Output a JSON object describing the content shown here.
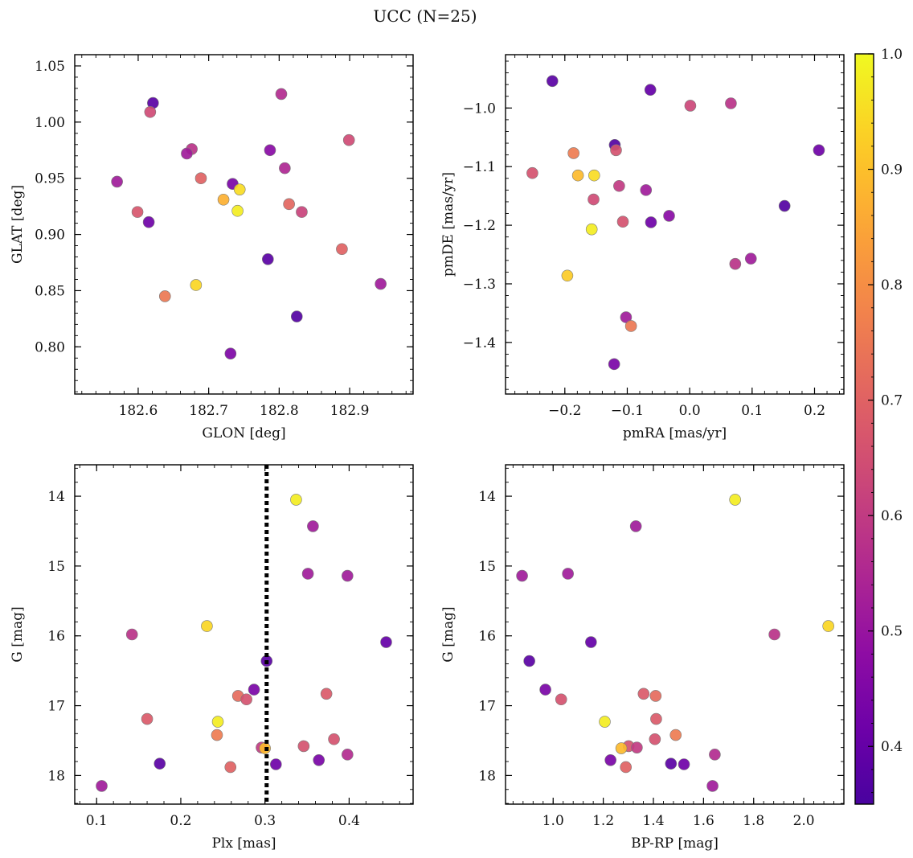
{
  "figure": {
    "title": "UCC (N=25)"
  },
  "colorbar": {
    "colormap": "plasma",
    "vmin": 0.35,
    "vmax": 1.0,
    "ticks": [
      0.4,
      0.5,
      0.6,
      0.7,
      0.8,
      0.9,
      1.0
    ],
    "tick_labels": [
      "0.4",
      "0.5",
      "0.6",
      "0.7",
      "0.8",
      "0.9",
      "1.0"
    ]
  },
  "chart_data": [
    {
      "type": "scatter",
      "id": "glon_glat",
      "xlabel": "GLON [deg]",
      "ylabel": "GLAT [deg]",
      "xlim": [
        182.51,
        182.99
      ],
      "ylim": [
        0.758,
        1.06
      ],
      "xticks": [
        182.6,
        182.7,
        182.8,
        182.9
      ],
      "xtick_labels": [
        "182.6",
        "182.7",
        "182.8",
        "182.9"
      ],
      "yticks": [
        0.8,
        0.85,
        0.9,
        0.95,
        1.0,
        1.05
      ],
      "ytick_labels": [
        "0.80",
        "0.85",
        "0.90",
        "0.95",
        "1.00",
        "1.05"
      ],
      "y_inverted": false,
      "points": [
        {
          "x": 182.621,
          "y": 1.017,
          "c": 0.38
        },
        {
          "x": 182.617,
          "y": 1.009,
          "c": 0.64
        },
        {
          "x": 182.803,
          "y": 1.025,
          "c": 0.56
        },
        {
          "x": 182.899,
          "y": 0.984,
          "c": 0.64
        },
        {
          "x": 182.676,
          "y": 0.976,
          "c": 0.58
        },
        {
          "x": 182.669,
          "y": 0.972,
          "c": 0.52
        },
        {
          "x": 182.787,
          "y": 0.975,
          "c": 0.47
        },
        {
          "x": 182.808,
          "y": 0.959,
          "c": 0.55
        },
        {
          "x": 182.57,
          "y": 0.947,
          "c": 0.52
        },
        {
          "x": 182.689,
          "y": 0.95,
          "c": 0.7
        },
        {
          "x": 182.734,
          "y": 0.945,
          "c": 0.44
        },
        {
          "x": 182.744,
          "y": 0.94,
          "c": 0.95
        },
        {
          "x": 182.721,
          "y": 0.931,
          "c": 0.87
        },
        {
          "x": 182.814,
          "y": 0.927,
          "c": 0.71
        },
        {
          "x": 182.832,
          "y": 0.92,
          "c": 0.62
        },
        {
          "x": 182.599,
          "y": 0.92,
          "c": 0.67
        },
        {
          "x": 182.741,
          "y": 0.921,
          "c": 0.98
        },
        {
          "x": 182.615,
          "y": 0.911,
          "c": 0.42
        },
        {
          "x": 182.889,
          "y": 0.887,
          "c": 0.7
        },
        {
          "x": 182.784,
          "y": 0.878,
          "c": 0.38
        },
        {
          "x": 182.682,
          "y": 0.855,
          "c": 0.94
        },
        {
          "x": 182.638,
          "y": 0.845,
          "c": 0.75
        },
        {
          "x": 182.944,
          "y": 0.856,
          "c": 0.52
        },
        {
          "x": 182.825,
          "y": 0.827,
          "c": 0.37
        },
        {
          "x": 182.731,
          "y": 0.794,
          "c": 0.45
        }
      ]
    },
    {
      "type": "scatter",
      "id": "pmra_pmde",
      "xlabel": "pmRA [mas/yr]",
      "ylabel": "pmDE [mas/yr]",
      "xlim": [
        -0.295,
        0.247
      ],
      "ylim": [
        -1.488,
        -0.909
      ],
      "xticks": [
        -0.2,
        -0.1,
        0.0,
        0.1,
        0.2
      ],
      "xtick_labels": [
        "−0.2",
        "−0.1",
        "0.0",
        "0.1",
        "0.2"
      ],
      "yticks": [
        -1.4,
        -1.3,
        -1.2,
        -1.1,
        -1.0
      ],
      "ytick_labels": [
        "−1.4",
        "−1.3",
        "−1.2",
        "−1.1",
        "−1.0"
      ],
      "y_inverted": false,
      "points": [
        {
          "x": -0.22,
          "y": -0.954,
          "c": 0.38
        },
        {
          "x": -0.063,
          "y": -0.969,
          "c": 0.4
        },
        {
          "x": 0.001,
          "y": -0.996,
          "c": 0.63
        },
        {
          "x": 0.066,
          "y": -0.992,
          "c": 0.58
        },
        {
          "x": -0.12,
          "y": -1.063,
          "c": 0.37
        },
        {
          "x": -0.118,
          "y": -1.072,
          "c": 0.66
        },
        {
          "x": 0.207,
          "y": -1.072,
          "c": 0.42
        },
        {
          "x": -0.186,
          "y": -1.077,
          "c": 0.76
        },
        {
          "x": -0.252,
          "y": -1.111,
          "c": 0.66
        },
        {
          "x": -0.179,
          "y": -1.115,
          "c": 0.89
        },
        {
          "x": -0.153,
          "y": -1.115,
          "c": 0.95
        },
        {
          "x": -0.113,
          "y": -1.133,
          "c": 0.6
        },
        {
          "x": -0.07,
          "y": -1.14,
          "c": 0.52
        },
        {
          "x": -0.154,
          "y": -1.156,
          "c": 0.64
        },
        {
          "x": -0.033,
          "y": -1.184,
          "c": 0.47
        },
        {
          "x": -0.107,
          "y": -1.194,
          "c": 0.66
        },
        {
          "x": -0.062,
          "y": -1.195,
          "c": 0.42
        },
        {
          "x": 0.152,
          "y": -1.167,
          "c": 0.37
        },
        {
          "x": -0.157,
          "y": -1.207,
          "c": 0.98
        },
        {
          "x": 0.073,
          "y": -1.266,
          "c": 0.58
        },
        {
          "x": 0.098,
          "y": -1.257,
          "c": 0.52
        },
        {
          "x": -0.196,
          "y": -1.286,
          "c": 0.92
        },
        {
          "x": -0.102,
          "y": -1.357,
          "c": 0.52
        },
        {
          "x": -0.094,
          "y": -1.372,
          "c": 0.75
        },
        {
          "x": -0.121,
          "y": -1.437,
          "c": 0.44
        }
      ]
    },
    {
      "type": "scatter",
      "id": "plx_g",
      "xlabel": "Plx [mas]",
      "ylabel": "G [mag]",
      "xlim": [
        0.074,
        0.476
      ],
      "ylim": [
        13.55,
        18.41
      ],
      "xticks": [
        0.1,
        0.2,
        0.3,
        0.4
      ],
      "xtick_labels": [
        "0.1",
        "0.2",
        "0.3",
        "0.4"
      ],
      "yticks": [
        14,
        15,
        16,
        17,
        18
      ],
      "ytick_labels": [
        "14",
        "15",
        "16",
        "17",
        "18"
      ],
      "y_inverted": true,
      "vline": {
        "x": 0.302
      },
      "points": [
        {
          "x": 0.337,
          "y": 14.05,
          "c": 0.98
        },
        {
          "x": 0.357,
          "y": 14.43,
          "c": 0.52
        },
        {
          "x": 0.351,
          "y": 15.11,
          "c": 0.52
        },
        {
          "x": 0.398,
          "y": 15.14,
          "c": 0.52
        },
        {
          "x": 0.231,
          "y": 15.86,
          "c": 0.94
        },
        {
          "x": 0.142,
          "y": 15.98,
          "c": 0.58
        },
        {
          "x": 0.444,
          "y": 16.09,
          "c": 0.4
        },
        {
          "x": 0.302,
          "y": 16.36,
          "c": 0.38
        },
        {
          "x": 0.287,
          "y": 16.77,
          "c": 0.44
        },
        {
          "x": 0.268,
          "y": 16.86,
          "c": 0.72
        },
        {
          "x": 0.278,
          "y": 16.91,
          "c": 0.66
        },
        {
          "x": 0.373,
          "y": 16.83,
          "c": 0.68
        },
        {
          "x": 0.244,
          "y": 17.23,
          "c": 0.98
        },
        {
          "x": 0.16,
          "y": 17.19,
          "c": 0.68
        },
        {
          "x": 0.243,
          "y": 17.42,
          "c": 0.76
        },
        {
          "x": 0.382,
          "y": 17.48,
          "c": 0.66
        },
        {
          "x": 0.346,
          "y": 17.58,
          "c": 0.66
        },
        {
          "x": 0.296,
          "y": 17.6,
          "c": 0.6
        },
        {
          "x": 0.3,
          "y": 17.61,
          "c": 0.89
        },
        {
          "x": 0.398,
          "y": 17.7,
          "c": 0.56
        },
        {
          "x": 0.364,
          "y": 17.78,
          "c": 0.44
        },
        {
          "x": 0.175,
          "y": 17.83,
          "c": 0.38
        },
        {
          "x": 0.313,
          "y": 17.84,
          "c": 0.42
        },
        {
          "x": 0.259,
          "y": 17.88,
          "c": 0.7
        },
        {
          "x": 0.106,
          "y": 18.15,
          "c": 0.52
        }
      ]
    },
    {
      "type": "scatter",
      "id": "bprp_g",
      "xlabel": "BP-RP [mag]",
      "ylabel": "G [mag]",
      "xlim": [
        0.81,
        2.16
      ],
      "ylim": [
        13.55,
        18.41
      ],
      "xticks": [
        1.0,
        1.2,
        1.4,
        1.6,
        1.8,
        2.0
      ],
      "xtick_labels": [
        "1.0",
        "1.2",
        "1.4",
        "1.6",
        "1.8",
        "2.0"
      ],
      "yticks": [
        14,
        15,
        16,
        17,
        18
      ],
      "ytick_labels": [
        "14",
        "15",
        "16",
        "17",
        "18"
      ],
      "y_inverted": true,
      "points": [
        {
          "x": 1.726,
          "y": 14.05,
          "c": 0.98
        },
        {
          "x": 1.33,
          "y": 14.43,
          "c": 0.52
        },
        {
          "x": 1.059,
          "y": 15.11,
          "c": 0.52
        },
        {
          "x": 0.876,
          "y": 15.14,
          "c": 0.52
        },
        {
          "x": 2.098,
          "y": 15.86,
          "c": 0.94
        },
        {
          "x": 1.883,
          "y": 15.98,
          "c": 0.58
        },
        {
          "x": 1.151,
          "y": 16.09,
          "c": 0.4
        },
        {
          "x": 0.905,
          "y": 16.36,
          "c": 0.38
        },
        {
          "x": 0.969,
          "y": 16.77,
          "c": 0.44
        },
        {
          "x": 1.409,
          "y": 16.86,
          "c": 0.72
        },
        {
          "x": 1.032,
          "y": 16.91,
          "c": 0.66
        },
        {
          "x": 1.361,
          "y": 16.83,
          "c": 0.68
        },
        {
          "x": 1.206,
          "y": 17.23,
          "c": 0.98
        },
        {
          "x": 1.411,
          "y": 17.19,
          "c": 0.68
        },
        {
          "x": 1.489,
          "y": 17.42,
          "c": 0.76
        },
        {
          "x": 1.406,
          "y": 17.48,
          "c": 0.66
        },
        {
          "x": 1.301,
          "y": 17.58,
          "c": 0.66
        },
        {
          "x": 1.334,
          "y": 17.6,
          "c": 0.6
        },
        {
          "x": 1.272,
          "y": 17.61,
          "c": 0.89
        },
        {
          "x": 1.645,
          "y": 17.7,
          "c": 0.56
        },
        {
          "x": 1.229,
          "y": 17.78,
          "c": 0.44
        },
        {
          "x": 1.47,
          "y": 17.83,
          "c": 0.38
        },
        {
          "x": 1.522,
          "y": 17.84,
          "c": 0.42
        },
        {
          "x": 1.29,
          "y": 17.88,
          "c": 0.7
        },
        {
          "x": 1.636,
          "y": 18.15,
          "c": 0.52
        }
      ]
    }
  ]
}
